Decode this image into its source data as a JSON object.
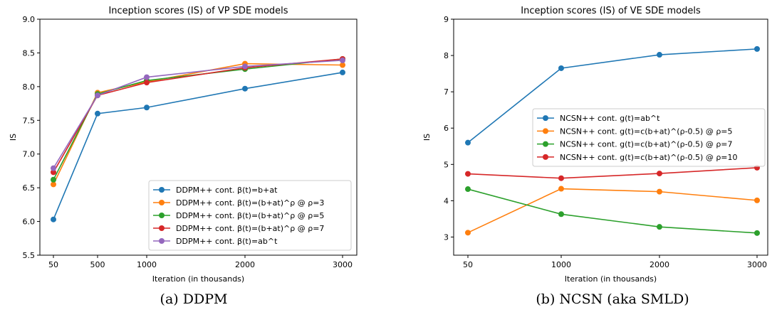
{
  "charts": [
    {
      "caption": "(a) DDPM",
      "chart_data": {
        "type": "line",
        "title": "Inception scores (IS) of VP SDE models",
        "xlabel": "Iteration (in thousands)",
        "ylabel": "IS",
        "x": [
          50,
          500,
          1000,
          2000,
          3000
        ],
        "xticks": [
          "50",
          "500",
          "1000",
          "2000",
          "3000"
        ],
        "ylim": [
          5.5,
          9.0
        ],
        "yticks": [
          "5.5",
          "6.0",
          "6.5",
          "7.0",
          "7.5",
          "8.0",
          "8.5",
          "9.0"
        ],
        "grid": false,
        "legend_position": "lower right",
        "series": [
          {
            "name": "DDPM++ cont. β(t)=b+at",
            "color": "#1f77b4",
            "values": [
              6.03,
              7.6,
              7.69,
              7.97,
              8.21
            ]
          },
          {
            "name": "DDPM++ cont. β(t)=(b+at)^ρ @ ρ=3",
            "color": "#ff7f0e",
            "values": [
              6.55,
              7.91,
              8.07,
              8.34,
              8.32
            ]
          },
          {
            "name": "DDPM++ cont. β(t)=(b+at)^ρ @ ρ=5",
            "color": "#2ca02c",
            "values": [
              6.62,
              7.89,
              8.09,
              8.26,
              8.41
            ]
          },
          {
            "name": "DDPM++ cont. β(t)=(b+at)^ρ @ ρ=7",
            "color": "#d62728",
            "values": [
              6.73,
              7.87,
              8.06,
              8.28,
              8.41
            ]
          },
          {
            "name": "DDPM++ cont. β(t)=ab^t",
            "color": "#9467bd",
            "values": [
              6.79,
              7.87,
              8.14,
              8.3,
              8.39
            ]
          }
        ]
      }
    },
    {
      "caption": "(b) NCSN (aka SMLD)",
      "chart_data": {
        "type": "line",
        "title": "Inception scores (IS) of VE SDE models",
        "xlabel": "Iteration (in thousands)",
        "ylabel": "IS",
        "x": [
          50,
          1000,
          2000,
          3000
        ],
        "xticks": [
          "50",
          "1000",
          "2000",
          "3000"
        ],
        "ylim": [
          2.5,
          9.0
        ],
        "yticks": [
          "3",
          "4",
          "5",
          "6",
          "7",
          "8",
          "9"
        ],
        "grid": false,
        "legend_position": "center right",
        "series": [
          {
            "name": "NCSN++ cont. g(t)=ab^t",
            "color": "#1f77b4",
            "values": [
              5.6,
              7.65,
              8.02,
              8.18
            ]
          },
          {
            "name": "NCSN++ cont. g(t)=c(b+at)^(ρ-0.5) @ ρ=5",
            "color": "#ff7f0e",
            "values": [
              3.12,
              4.33,
              4.25,
              4.01
            ]
          },
          {
            "name": "NCSN++ cont. g(t)=c(b+at)^(ρ-0.5) @ ρ=7",
            "color": "#2ca02c",
            "values": [
              4.32,
              3.63,
              3.28,
              3.11
            ]
          },
          {
            "name": "NCSN++ cont. g(t)=c(b+at)^(ρ-0.5) @ ρ=10",
            "color": "#d62728",
            "values": [
              4.74,
              4.62,
              4.75,
              4.91
            ]
          }
        ]
      }
    }
  ]
}
